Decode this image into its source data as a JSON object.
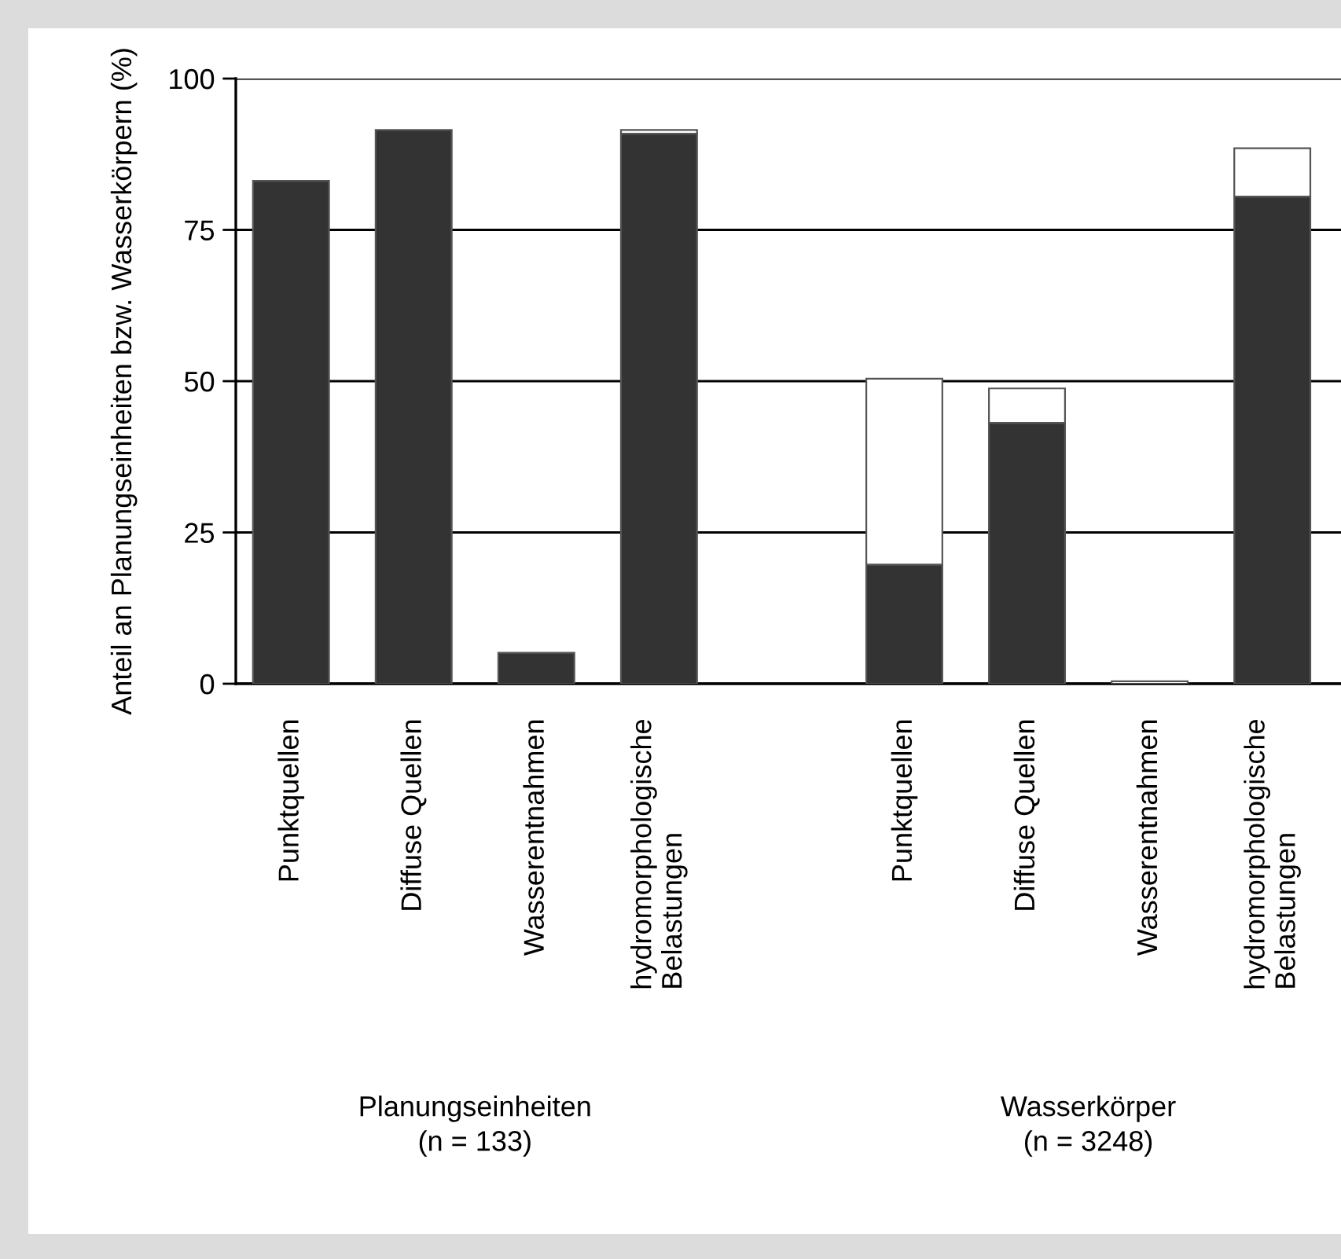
{
  "chart_data": {
    "type": "bar",
    "stacked": true,
    "ylabel": "Anteil an Planungseinheiten bzw. Wasserkörpern (%)",
    "categories": [
      "Punktquellen",
      "Diffuse Quellen",
      "Wasserentnahmen",
      "hydromorphologische\nBelastungen",
      null,
      "Punktquellen",
      "Diffuse Quellen",
      "Wasserentnahmen",
      "hydromorphologische\nBelastungen"
    ],
    "series": [
      {
        "color": "#333333",
        "values": [
          83.1,
          91.5,
          5.1,
          90.9,
          null,
          19.7,
          43.1,
          null,
          80.5
        ]
      },
      {
        "color": "#ffffff",
        "values": [
          null,
          null,
          null,
          0.6,
          null,
          30.7,
          5.7,
          0.4,
          8.0
        ]
      }
    ],
    "ylim": [
      0,
      100
    ],
    "yticks": [
      0,
      25,
      50,
      75,
      100
    ],
    "grid": "y",
    "annotations": [
      "Planungseinheiten\n(n = 133)",
      "Wasserkörper\n(n = 3248)"
    ]
  }
}
